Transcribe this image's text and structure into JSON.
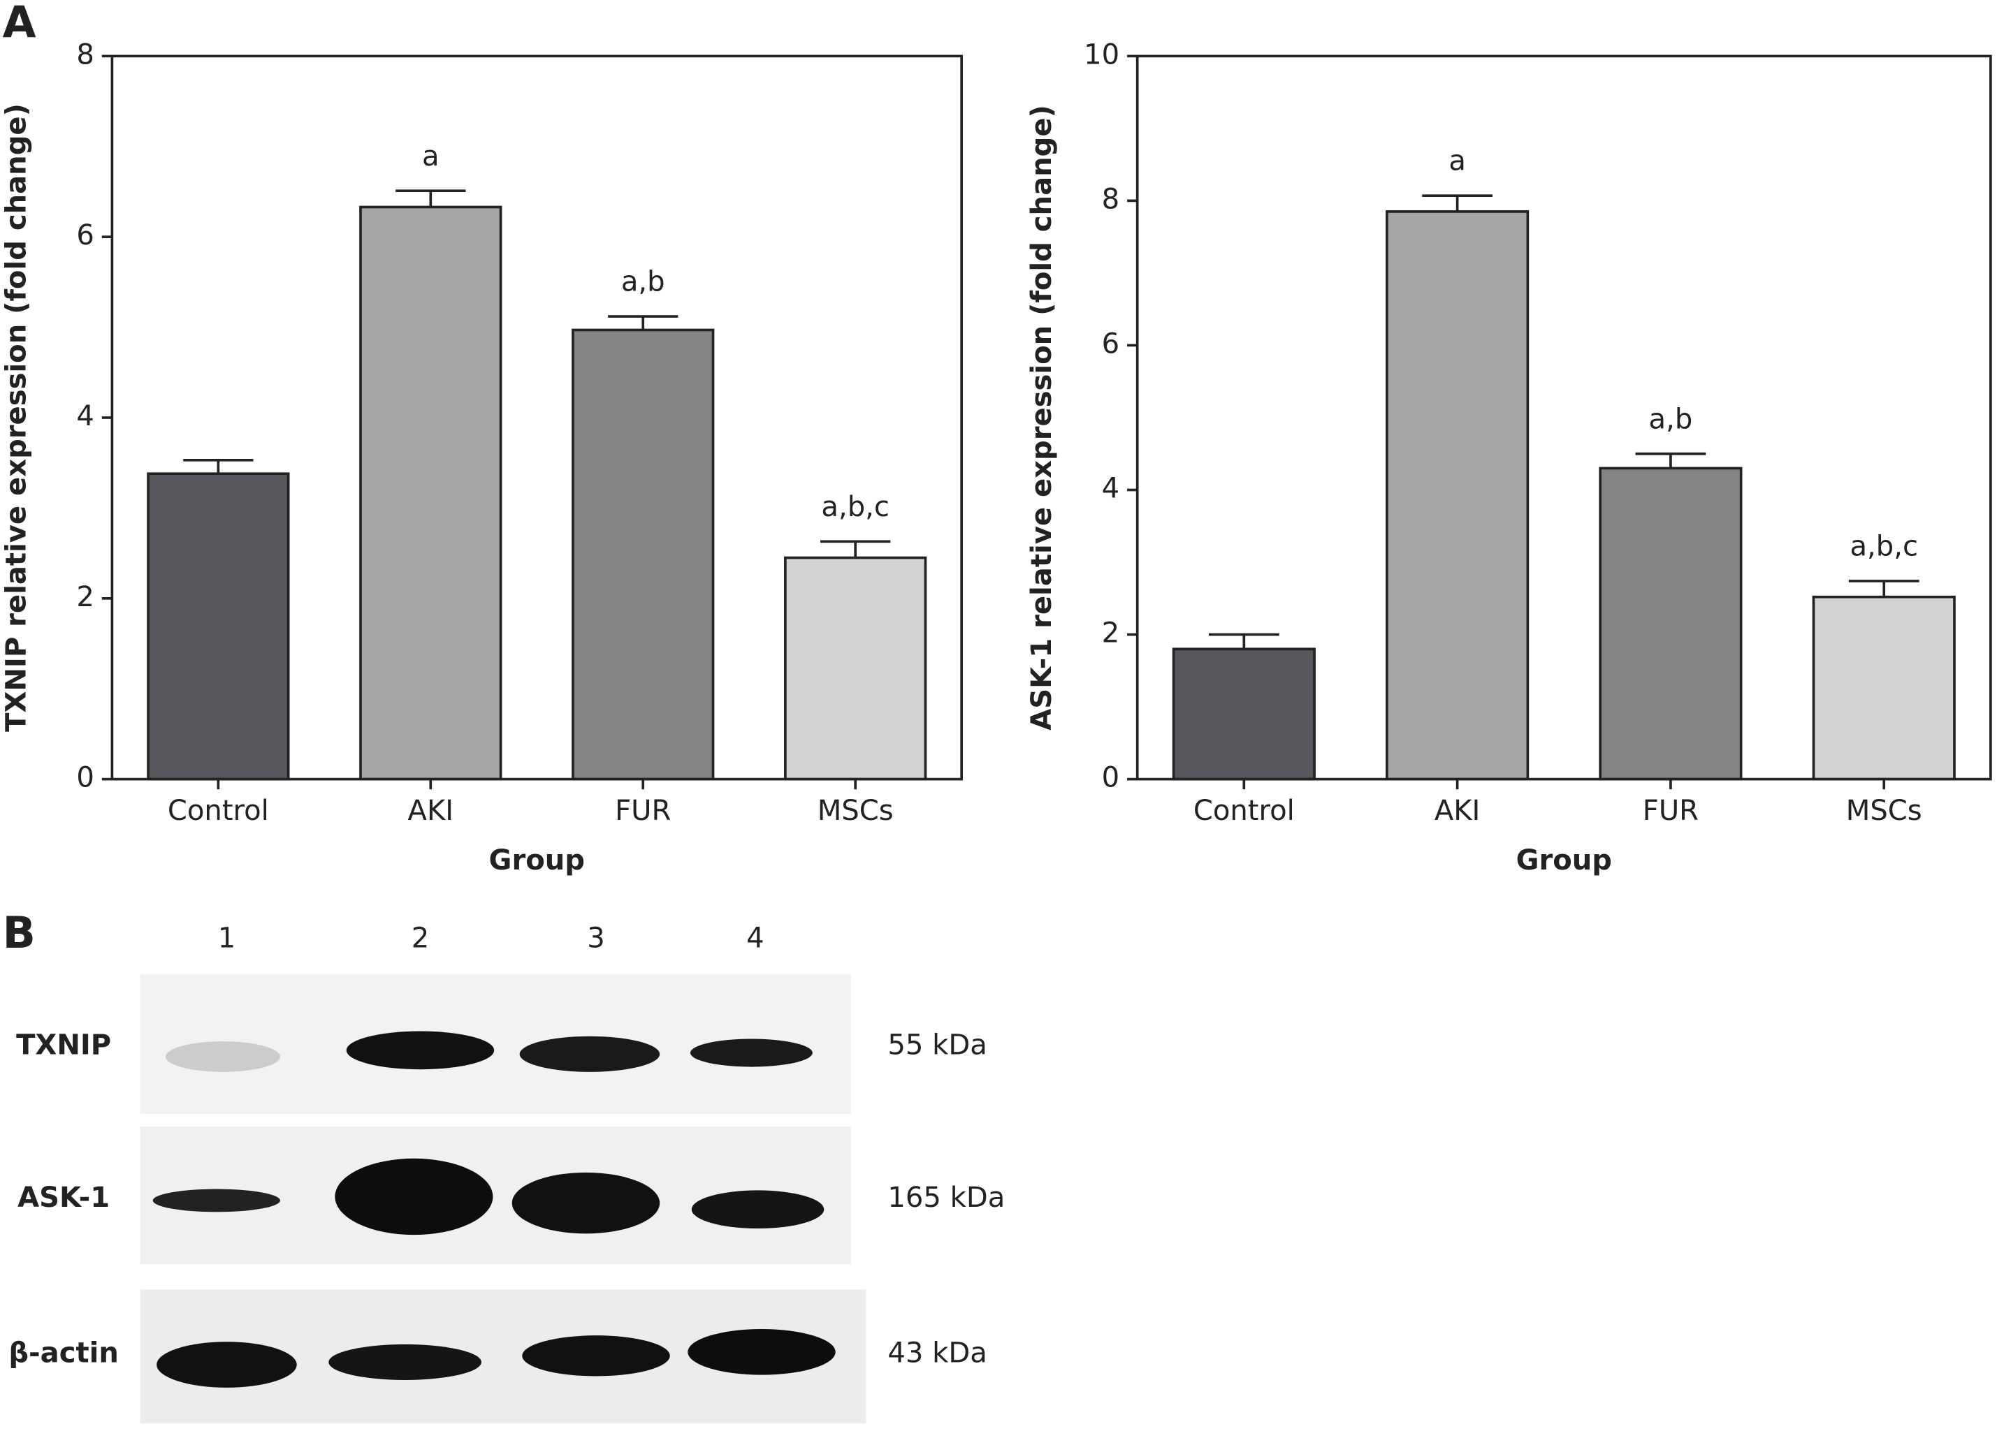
{
  "chart_data": [
    {
      "type": "bar",
      "y_label": "TXNIP relative expression (fold change)",
      "x_label": "Group",
      "categories": [
        "Control",
        "AKI",
        "FUR",
        "MSCs"
      ],
      "values": [
        3.38,
        6.33,
        4.97,
        2.45
      ],
      "errors": [
        0.15,
        0.18,
        0.15,
        0.18
      ],
      "annotations": [
        null,
        "a",
        "a,b",
        "a,b,c"
      ],
      "colors": [
        "#55575c",
        "#a5a6a8",
        "#838486",
        "#d2d3d5"
      ],
      "ylim": [
        0,
        8
      ],
      "yticks": [
        0,
        2,
        4,
        6,
        8
      ]
    },
    {
      "type": "bar",
      "y_label": "ASK-1 relative expression (fold change)",
      "x_label": "Group",
      "categories": [
        "Control",
        "AKI",
        "FUR",
        "MSCs"
      ],
      "values": [
        1.8,
        7.85,
        4.3,
        2.52
      ],
      "errors": [
        0.2,
        0.22,
        0.2,
        0.22
      ],
      "annotations": [
        null,
        "a",
        "a,b",
        "a,b,c"
      ],
      "colors": [
        "#55575c",
        "#a5a6a8",
        "#838486",
        "#d2d3d5"
      ],
      "ylim": [
        0,
        10
      ],
      "yticks": [
        0,
        2,
        4,
        6,
        8,
        10
      ]
    }
  ],
  "panels": [
    "A",
    "B"
  ],
  "blot": {
    "lanes": [
      "1",
      "2",
      "3",
      "4"
    ],
    "rows": [
      {
        "label": "TXNIP",
        "size": "55 kDa"
      },
      {
        "label": "ASK-1",
        "size": "165 kDa"
      },
      {
        "label": "β-actin",
        "size": "43 kDa"
      }
    ]
  }
}
